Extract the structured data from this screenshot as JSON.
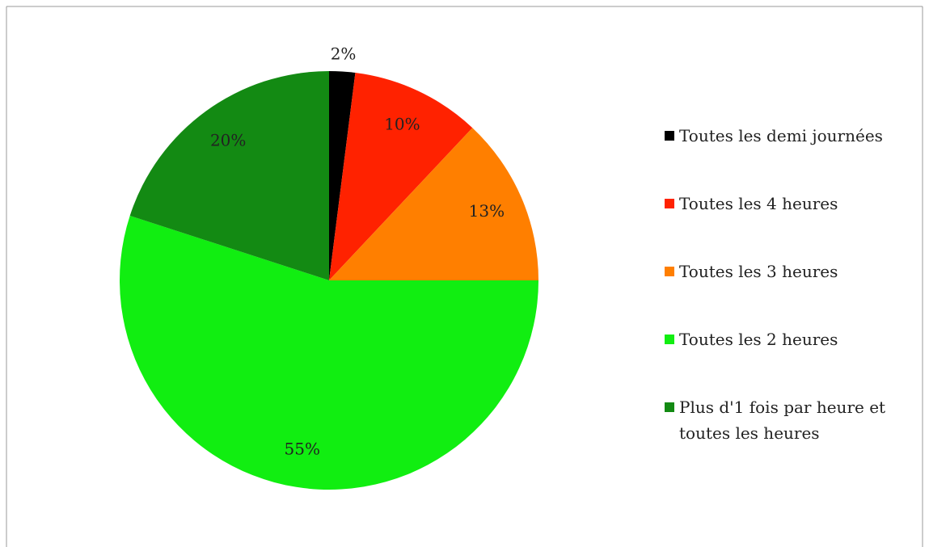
{
  "chart_data": {
    "type": "pie",
    "categories": [
      "Toutes les demi journées",
      "Toutes les 4 heures",
      "Toutes les 3 heures",
      "Toutes les 2 heures",
      "Plus d'1 fois par heure et toutes les heures"
    ],
    "values": [
      2,
      10,
      13,
      55,
      20
    ],
    "value_labels": [
      "2%",
      "10%",
      "13%",
      "55%",
      "20%"
    ],
    "colors": [
      "#000000",
      "#ff2200",
      "#ff7f00",
      "#11ee11",
      "#138a13"
    ],
    "legend": "right"
  }
}
